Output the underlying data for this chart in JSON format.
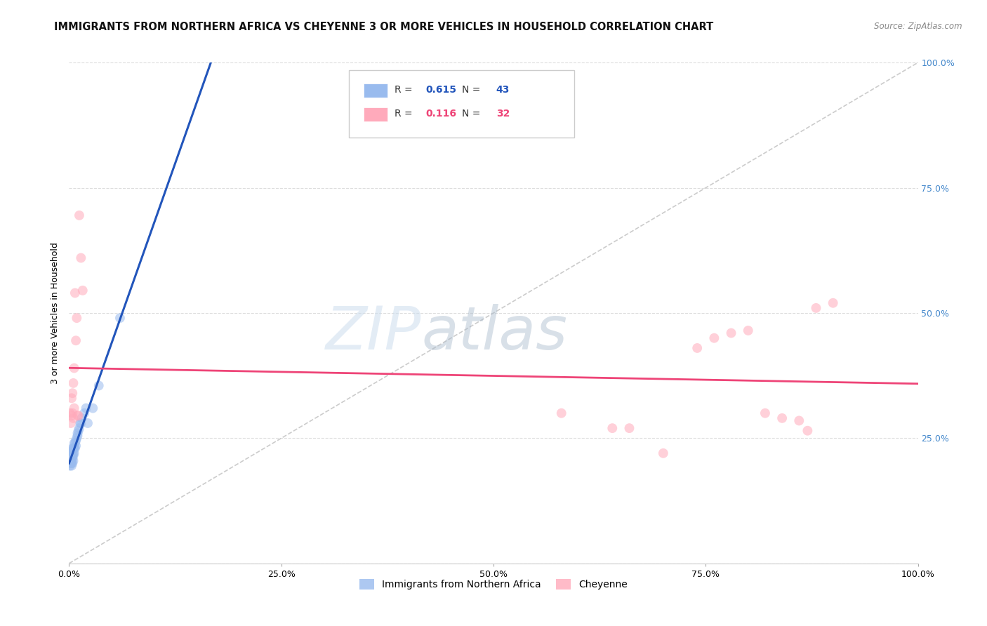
{
  "title": "IMMIGRANTS FROM NORTHERN AFRICA VS CHEYENNE 3 OR MORE VEHICLES IN HOUSEHOLD CORRELATION CHART",
  "source": "Source: ZipAtlas.com",
  "ylabel_left": "3 or more Vehicles in Household",
  "legend_label1": "Immigrants from Northern Africa",
  "legend_label2": "Cheyenne",
  "R1": 0.615,
  "N1": 43,
  "R2": 0.116,
  "N2": 32,
  "color_blue": "#99BBEE",
  "color_pink": "#FFAABB",
  "color_blue_line": "#2255BB",
  "color_pink_line": "#EE4477",
  "color_diag": "#CCCCCC",
  "color_right_axis": "#4488CC",
  "background": "#FFFFFF",
  "grid_color": "#DDDDDD",
  "blue_x": [
    0.001,
    0.001,
    0.001,
    0.002,
    0.002,
    0.002,
    0.002,
    0.003,
    0.003,
    0.003,
    0.003,
    0.003,
    0.003,
    0.004,
    0.004,
    0.004,
    0.004,
    0.004,
    0.005,
    0.005,
    0.005,
    0.005,
    0.006,
    0.006,
    0.006,
    0.007,
    0.007,
    0.008,
    0.008,
    0.009,
    0.01,
    0.01,
    0.011,
    0.012,
    0.013,
    0.014,
    0.015,
    0.018,
    0.02,
    0.022,
    0.028,
    0.035,
    0.06
  ],
  "blue_y": [
    0.195,
    0.21,
    0.215,
    0.2,
    0.205,
    0.21,
    0.22,
    0.195,
    0.2,
    0.205,
    0.21,
    0.215,
    0.22,
    0.2,
    0.21,
    0.215,
    0.225,
    0.23,
    0.205,
    0.215,
    0.22,
    0.23,
    0.22,
    0.23,
    0.24,
    0.23,
    0.24,
    0.235,
    0.245,
    0.25,
    0.255,
    0.26,
    0.265,
    0.27,
    0.28,
    0.28,
    0.29,
    0.3,
    0.31,
    0.28,
    0.31,
    0.355,
    0.49
  ],
  "pink_x": [
    0.001,
    0.002,
    0.003,
    0.003,
    0.004,
    0.004,
    0.005,
    0.005,
    0.006,
    0.006,
    0.007,
    0.008,
    0.009,
    0.01,
    0.011,
    0.012,
    0.014,
    0.016,
    0.58,
    0.64,
    0.66,
    0.7,
    0.74,
    0.76,
    0.78,
    0.8,
    0.82,
    0.84,
    0.86,
    0.87,
    0.88,
    0.9
  ],
  "pink_y": [
    0.3,
    0.28,
    0.295,
    0.33,
    0.3,
    0.34,
    0.29,
    0.36,
    0.31,
    0.39,
    0.54,
    0.445,
    0.49,
    0.295,
    0.295,
    0.695,
    0.61,
    0.545,
    0.3,
    0.27,
    0.27,
    0.22,
    0.43,
    0.45,
    0.46,
    0.465,
    0.3,
    0.29,
    0.285,
    0.265,
    0.51,
    0.52
  ],
  "xlim": [
    0.0,
    1.0
  ],
  "ylim": [
    0.0,
    1.0
  ],
  "xticks": [
    0.0,
    0.25,
    0.5,
    0.75,
    1.0
  ],
  "yticks": [
    0.0,
    0.25,
    0.5,
    0.75,
    1.0
  ],
  "ytick_labels_right": [
    "",
    "25.0%",
    "50.0%",
    "75.0%",
    "100.0%"
  ],
  "xtick_labels": [
    "0.0%",
    "25.0%",
    "50.0%",
    "75.0%",
    "100.0%"
  ],
  "marker_size": 100,
  "marker_alpha": 0.55,
  "title_fontsize": 10.5,
  "axis_label_fontsize": 9,
  "legend_fontsize": 10,
  "tick_fontsize": 9,
  "watermark": "ZIPatlas",
  "watermark_zip": "ZIP",
  "watermark_atlas": "atlas"
}
